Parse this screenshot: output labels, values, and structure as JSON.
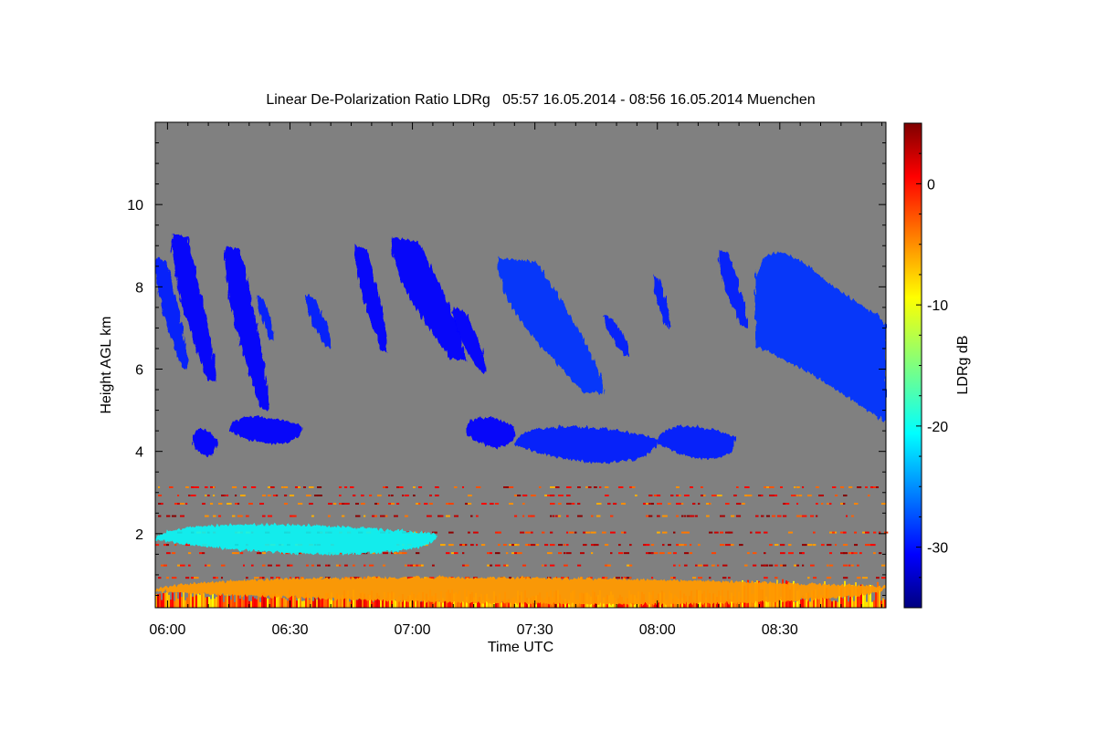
{
  "chart_data": {
    "type": "heatmap",
    "title": "Linear De-Polarization Ratio LDRg   05:57 16.05.2014 - 08:56 16.05.2014 Muenchen",
    "xlabel": "Time UTC",
    "ylabel": "Height AGL km",
    "xlim": [
      "05:57",
      "08:56"
    ],
    "x_ticks": [
      "06:00",
      "06:30",
      "07:00",
      "07:30",
      "08:00",
      "08:30"
    ],
    "ylim": [
      0.2,
      12
    ],
    "y_ticks": [
      2,
      4,
      6,
      8,
      10
    ],
    "background_color": "#808080",
    "colorbar": {
      "label": "LDRg dB",
      "range": [
        -35,
        5
      ],
      "ticks": [
        0,
        -10,
        -20,
        -30
      ],
      "colormap": "jet"
    },
    "features": [
      {
        "kind": "cirrus fall streak",
        "start": "05:57",
        "end": "06:05",
        "top_km": 8.7,
        "base_km": 6.0,
        "ldr_db": -29
      },
      {
        "kind": "cirrus fall streak",
        "start": "06:01",
        "end": "06:12",
        "top_km": 9.3,
        "base_km": 5.7,
        "ldr_db": -30
      },
      {
        "kind": "cirrus fall streak",
        "start": "06:14",
        "end": "06:25",
        "top_km": 9.0,
        "base_km": 5.0,
        "ldr_db": -30
      },
      {
        "kind": "cirrus fall streak",
        "start": "06:22",
        "end": "06:26",
        "top_km": 7.8,
        "base_km": 6.7,
        "ldr_db": -29
      },
      {
        "kind": "cirrus fall streak",
        "start": "06:34",
        "end": "06:40",
        "top_km": 7.8,
        "base_km": 6.5,
        "ldr_db": -29
      },
      {
        "kind": "cirrus fall streak",
        "start": "06:46",
        "end": "06:54",
        "top_km": 9.0,
        "base_km": 6.4,
        "ldr_db": -30
      },
      {
        "kind": "cirrus fall streak",
        "start": "06:55",
        "end": "07:13",
        "top_km": 9.2,
        "base_km": 6.2,
        "ldr_db": -30
      },
      {
        "kind": "cirrus fall streak",
        "start": "07:10",
        "end": "07:18",
        "top_km": 7.5,
        "base_km": 5.9,
        "ldr_db": -30
      },
      {
        "kind": "cirrus fall streak",
        "start": "07:21",
        "end": "07:47",
        "top_km": 8.7,
        "base_km": 5.4,
        "ldr_db": -28
      },
      {
        "kind": "cirrus fall streak",
        "start": "07:47",
        "end": "07:53",
        "top_km": 7.3,
        "base_km": 6.3,
        "ldr_db": -29
      },
      {
        "kind": "cirrus fall streak",
        "start": "07:59",
        "end": "08:03",
        "top_km": 8.3,
        "base_km": 7.0,
        "ldr_db": -29
      },
      {
        "kind": "cirrus fall streak",
        "start": "08:15",
        "end": "08:22",
        "top_km": 8.9,
        "base_km": 7.0,
        "ldr_db": -29
      },
      {
        "kind": "cirrus",
        "start": "08:24",
        "end": "08:56",
        "top_km": 9.0,
        "base_km": 4.7,
        "ldr_db": -28
      },
      {
        "kind": "mid-level cloud",
        "start": "06:06",
        "end": "06:12",
        "top_km": 4.6,
        "base_km": 3.8,
        "ldr_db": -30
      },
      {
        "kind": "mid-level cloud",
        "start": "06:15",
        "end": "06:33",
        "top_km": 4.9,
        "base_km": 4.1,
        "ldr_db": -30
      },
      {
        "kind": "mid-level cloud",
        "start": "07:13",
        "end": "07:25",
        "top_km": 4.9,
        "base_km": 4.0,
        "ldr_db": -30
      },
      {
        "kind": "mid-level cloud",
        "start": "07:25",
        "end": "08:00",
        "top_km": 4.7,
        "base_km": 3.6,
        "ldr_db": -29
      },
      {
        "kind": "mid-level cloud",
        "start": "08:00",
        "end": "08:19",
        "top_km": 4.7,
        "base_km": 3.7,
        "ldr_db": -29
      },
      {
        "kind": "aerosol layer",
        "start": "05:57",
        "end": "07:06",
        "top_km": 2.3,
        "base_km": 1.4,
        "ldr_db": -20
      },
      {
        "kind": "boundary layer",
        "start": "05:57",
        "end": "08:56",
        "top_km": 1.0,
        "base_km": 0.2,
        "ldr_db": -6
      }
    ]
  }
}
